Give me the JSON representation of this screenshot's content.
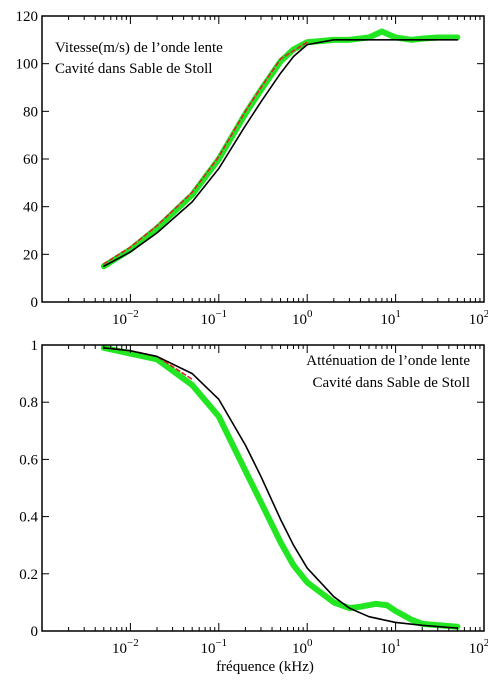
{
  "chart_data": [
    {
      "type": "line",
      "annotation_lines": [
        "Vitesse(m/s) de l’onde lente",
        "Cavité dans Sable de Stoll"
      ],
      "xscale": "log",
      "xlim": [
        0.001,
        100
      ],
      "ylim": [
        0,
        120
      ],
      "xticks": [
        {
          "value": 0.01,
          "base": "10",
          "exp": "−2"
        },
        {
          "value": 0.1,
          "base": "10",
          "exp": "−1"
        },
        {
          "value": 1,
          "base": "10",
          "exp": "0"
        },
        {
          "value": 10,
          "base": "10",
          "exp": "1"
        },
        {
          "value": 100,
          "base": "10",
          "exp": "2"
        }
      ],
      "yticks": [
        {
          "value": 0,
          "label": "0"
        },
        {
          "value": 20,
          "label": "20"
        },
        {
          "value": 40,
          "label": "40"
        },
        {
          "value": 60,
          "label": "60"
        },
        {
          "value": 80,
          "label": "80"
        },
        {
          "value": 100,
          "label": "100"
        },
        {
          "value": 120,
          "label": "120"
        }
      ],
      "series": [
        {
          "style": "solid",
          "color": "#000000",
          "x": [
            0.005,
            0.01,
            0.02,
            0.05,
            0.1,
            0.2,
            0.3,
            0.5,
            0.7,
            1,
            2,
            5,
            10,
            50
          ],
          "y": [
            15,
            21,
            29,
            42,
            56,
            74,
            84,
            96,
            103,
            108,
            110,
            110,
            110,
            110
          ]
        },
        {
          "style": "dashed",
          "color": "#e0202a",
          "x": [
            0.005,
            0.01,
            0.02,
            0.05,
            0.1,
            0.2,
            0.3,
            0.5,
            1
          ],
          "y": [
            16,
            23,
            32,
            46,
            61,
            80,
            90,
            102,
            109
          ]
        },
        {
          "style": "thick",
          "color": "#22e622",
          "x": [
            0.005,
            0.01,
            0.02,
            0.05,
            0.1,
            0.2,
            0.3,
            0.5,
            0.7,
            1,
            2,
            3,
            5,
            7,
            10,
            15,
            20,
            30,
            50
          ],
          "y": [
            15,
            22,
            31,
            45,
            60,
            79,
            89,
            101,
            106,
            109,
            110,
            110,
            111,
            113.5,
            111,
            110,
            110.5,
            111,
            111
          ]
        }
      ]
    },
    {
      "type": "line",
      "annotation_lines": [
        "Atténuation de l’onde lente",
        "Cavité dans Sable de Stoll"
      ],
      "xlabel": "fréquence (kHz)",
      "xscale": "log",
      "xlim": [
        0.001,
        100
      ],
      "ylim": [
        0,
        1
      ],
      "xticks": [
        {
          "value": 0.01,
          "base": "10",
          "exp": "−2"
        },
        {
          "value": 0.1,
          "base": "10",
          "exp": "−1"
        },
        {
          "value": 1,
          "base": "10",
          "exp": "0"
        },
        {
          "value": 10,
          "base": "10",
          "exp": "1"
        },
        {
          "value": 100,
          "base": "10",
          "exp": "2"
        }
      ],
      "yticks": [
        {
          "value": 0,
          "label": "0"
        },
        {
          "value": 0.2,
          "label": "0.2"
        },
        {
          "value": 0.4,
          "label": "0.4"
        },
        {
          "value": 0.6,
          "label": "0.6"
        },
        {
          "value": 0.8,
          "label": "0.8"
        },
        {
          "value": 1,
          "label": "1"
        }
      ],
      "series": [
        {
          "style": "solid",
          "color": "#000000",
          "x": [
            0.005,
            0.01,
            0.02,
            0.05,
            0.1,
            0.2,
            0.3,
            0.5,
            0.7,
            1,
            2,
            3,
            5,
            10,
            20,
            50
          ],
          "y": [
            0.99,
            0.98,
            0.96,
            0.9,
            0.81,
            0.65,
            0.54,
            0.39,
            0.3,
            0.22,
            0.12,
            0.08,
            0.05,
            0.03,
            0.02,
            0.01
          ]
        },
        {
          "style": "dashed",
          "color": "#e0202a",
          "x": [
            0.005,
            0.01,
            0.02,
            0.05
          ],
          "y": [
            0.99,
            0.98,
            0.96,
            0.88
          ]
        },
        {
          "style": "thick",
          "color": "#22e622",
          "x": [
            0.005,
            0.01,
            0.02,
            0.05,
            0.1,
            0.2,
            0.3,
            0.5,
            0.7,
            1,
            2,
            3,
            4,
            6,
            8,
            10,
            15,
            20,
            50
          ],
          "y": [
            0.99,
            0.97,
            0.95,
            0.86,
            0.75,
            0.56,
            0.45,
            0.31,
            0.23,
            0.17,
            0.1,
            0.08,
            0.085,
            0.095,
            0.09,
            0.07,
            0.04,
            0.025,
            0.015
          ]
        }
      ]
    }
  ]
}
